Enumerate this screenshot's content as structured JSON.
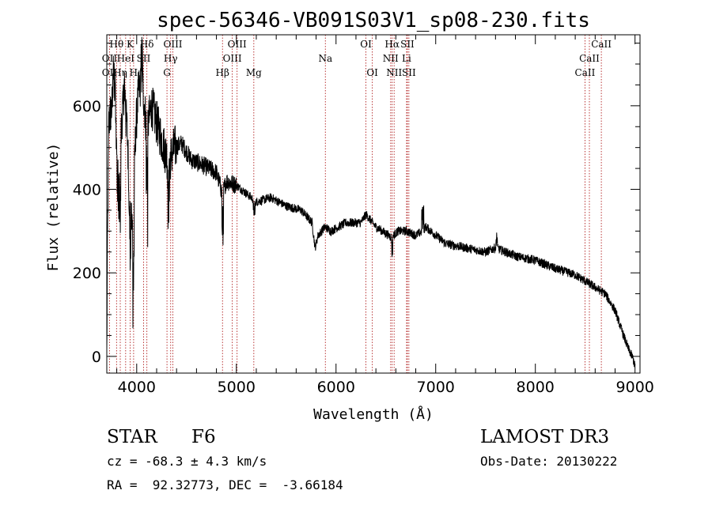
{
  "chart_data": {
    "type": "line",
    "title": "spec-56346-VB091S03V1_sp08-230.fits",
    "xlabel": "Wavelength (Å)",
    "ylabel": "Flux (relative)",
    "xlim": [
      3700,
      9050
    ],
    "ylim": [
      -40,
      770
    ],
    "xticks": [
      4000,
      5000,
      6000,
      7000,
      8000,
      9000
    ],
    "yticks": [
      0,
      200,
      400,
      600
    ],
    "x_minor_step": 200,
    "y_minor_step": 50,
    "spectrum_anchors": [
      [
        3700,
        0
      ],
      [
        3705,
        220
      ],
      [
        3720,
        560
      ],
      [
        3760,
        610
      ],
      [
        3800,
        540
      ],
      [
        3830,
        470
      ],
      [
        3860,
        600
      ],
      [
        3900,
        560
      ],
      [
        3930,
        380
      ],
      [
        3960,
        300
      ],
      [
        3990,
        540
      ],
      [
        4020,
        640
      ],
      [
        4060,
        650
      ],
      [
        4100,
        540
      ],
      [
        4150,
        600
      ],
      [
        4200,
        560
      ],
      [
        4250,
        520
      ],
      [
        4300,
        480
      ],
      [
        4330,
        470
      ],
      [
        4380,
        500
      ],
      [
        4450,
        510
      ],
      [
        4550,
        470
      ],
      [
        4650,
        460
      ],
      [
        4800,
        440
      ],
      [
        4860,
        390
      ],
      [
        4900,
        420
      ],
      [
        5000,
        410
      ],
      [
        5100,
        390
      ],
      [
        5200,
        370
      ],
      [
        5350,
        380
      ],
      [
        5500,
        360
      ],
      [
        5650,
        350
      ],
      [
        5760,
        320
      ],
      [
        5790,
        260
      ],
      [
        5820,
        290
      ],
      [
        5890,
        310
      ],
      [
        5950,
        300
      ],
      [
        6100,
        320
      ],
      [
        6250,
        320
      ],
      [
        6300,
        340
      ],
      [
        6400,
        310
      ],
      [
        6560,
        285
      ],
      [
        6620,
        300
      ],
      [
        6700,
        300
      ],
      [
        6800,
        290
      ],
      [
        6870,
        300
      ],
      [
        6900,
        310
      ],
      [
        7000,
        290
      ],
      [
        7100,
        270
      ],
      [
        7300,
        260
      ],
      [
        7500,
        250
      ],
      [
        7600,
        260
      ],
      [
        7800,
        240
      ],
      [
        8000,
        230
      ],
      [
        8200,
        210
      ],
      [
        8400,
        195
      ],
      [
        8500,
        180
      ],
      [
        8600,
        165
      ],
      [
        8700,
        150
      ],
      [
        8800,
        110
      ],
      [
        8870,
        60
      ],
      [
        8930,
        20
      ],
      [
        8980,
        -5
      ],
      [
        9000,
        -25
      ]
    ],
    "spectrum_spikes": [
      [
        3720,
        380,
        -300
      ],
      [
        3760,
        3790,
        120
      ],
      [
        3800,
        3840,
        -150
      ],
      [
        3870,
        3890,
        80
      ],
      [
        3920,
        3940,
        -120
      ],
      [
        3960,
        3975,
        -240
      ],
      [
        4040,
        4060,
        80
      ],
      [
        4095,
        4110,
        -220
      ],
      [
        4310,
        4330,
        -120
      ],
      [
        4855,
        4870,
        -100
      ],
      [
        5170,
        5190,
        -40
      ],
      [
        6555,
        6570,
        -40
      ],
      [
        6860,
        6880,
        60
      ],
      [
        7605,
        7620,
        30
      ]
    ],
    "lines": [
      {
        "label": "Hθ",
        "x": 3798,
        "row": 1
      },
      {
        "label": "OII",
        "x": 3727,
        "row": 2
      },
      {
        "label": "OII",
        "x": 3727,
        "row": 3
      },
      {
        "label": "K",
        "x": 3934,
        "row": 1
      },
      {
        "label": "Hδ",
        "x": 4102,
        "row": 1
      },
      {
        "label": "HeI",
        "x": 3889,
        "row": 2
      },
      {
        "label": "SII",
        "x": 4069,
        "row": 2
      },
      {
        "label": "Hη",
        "x": 3835,
        "row": 3
      },
      {
        "label": "H",
        "x": 3969,
        "row": 3
      },
      {
        "label": "OIII",
        "x": 4363,
        "row": 1
      },
      {
        "label": "Hγ",
        "x": 4341,
        "row": 2
      },
      {
        "label": "G",
        "x": 4304,
        "row": 3
      },
      {
        "label": "OIII",
        "x": 5007,
        "row": 1
      },
      {
        "label": "OIII",
        "x": 4959,
        "row": 2
      },
      {
        "label": "Hβ",
        "x": 4861,
        "row": 3
      },
      {
        "label": "Mg",
        "x": 5175,
        "row": 3
      },
      {
        "label": "Na",
        "x": 5893,
        "row": 2
      },
      {
        "label": "OI",
        "x": 6300,
        "row": 1
      },
      {
        "label": "OI",
        "x": 6364,
        "row": 3
      },
      {
        "label": "Hα",
        "x": 6563,
        "row": 1
      },
      {
        "label": "SII",
        "x": 6716,
        "row": 1
      },
      {
        "label": "NII",
        "x": 6548,
        "row": 2
      },
      {
        "label": "Li",
        "x": 6708,
        "row": 2
      },
      {
        "label": "NII",
        "x": 6583,
        "row": 3
      },
      {
        "label": "SII",
        "x": 6731,
        "row": 3
      },
      {
        "label": "CaII",
        "x": 8662,
        "row": 1
      },
      {
        "label": "CaII",
        "x": 8542,
        "row": 2
      },
      {
        "label": "CaII",
        "x": 8498,
        "row": 3
      }
    ]
  },
  "info": {
    "object_class": "STAR",
    "subclass": "F6",
    "survey": "LAMOST DR3",
    "cz": "cz = -68.3 ± 4.3 km/s",
    "obs_date": "Obs-Date: 20130222",
    "coords": "RA =  92.32773, DEC =  -3.66184"
  },
  "colors": {
    "line_marker": "#b22222",
    "spectrum": "#000000",
    "axes": "#000000"
  }
}
